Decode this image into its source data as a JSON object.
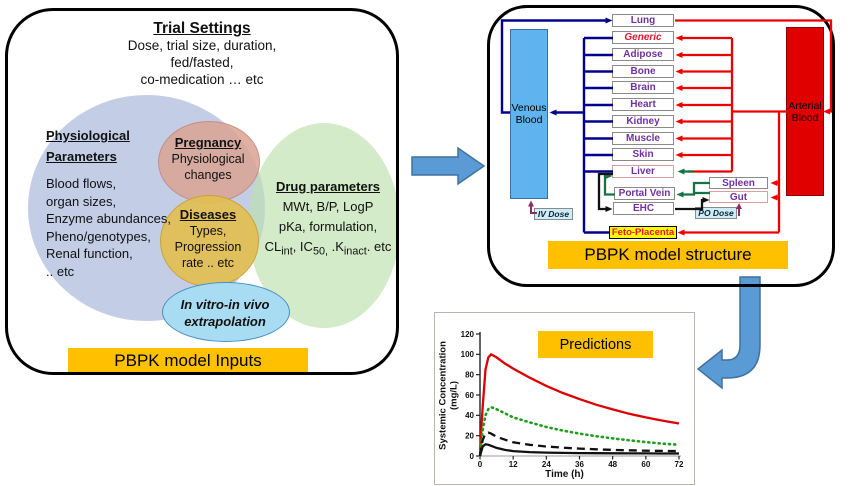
{
  "colors": {
    "accent_orange": "#FFC000",
    "venous_blue": "#5FB4F0",
    "arterial_red": "#E00000",
    "organ_text_purple": "#7030A0",
    "generic_red": "#E8112D",
    "flow_navy": "#00008C",
    "flow_red": "#EE0000",
    "flow_green": "#177245",
    "flow_black": "#111111",
    "dose_arrow_purple": "#8B2E62",
    "big_arrow_blue": "#5B9BD5",
    "big_arrow_border": "#41719C"
  },
  "inputs_panel": {
    "title": "Trial Settings",
    "subtitle_lines": [
      "Dose, trial size, duration,",
      "fed/fasted,",
      "co-medication  … etc"
    ],
    "physiological": {
      "heading1": "Physiological",
      "heading2": "Parameters",
      "items": [
        "Blood flows,",
        "organ sizes,",
        "Enzyme abundances,",
        "Pheno/genotypes,",
        "Renal function,",
        ".. etc"
      ]
    },
    "pregnancy": {
      "heading": "Pregnancy",
      "line1": "Physiological",
      "line2": "changes"
    },
    "diseases": {
      "heading": "Diseases",
      "lines": [
        "Types,",
        "Progression",
        "rate .. etc"
      ]
    },
    "drug": {
      "heading": "Drug parameters",
      "line1": "MWt, B/P, LogP",
      "line2": "pKa, formulation,",
      "line3": "CL_{int}, IC_{50,} .K_{inact}. etc"
    },
    "ivive": {
      "line1": "In vitro-in vivo",
      "line2": "extrapolation"
    },
    "footer": "PBPK model Inputs"
  },
  "structure_panel": {
    "venous": "Venous Blood",
    "arterial": "Arterial Blood",
    "organs": [
      {
        "label": "Lung",
        "variant": ""
      },
      {
        "label": "Generic",
        "variant": "generic"
      },
      {
        "label": "Adipose",
        "variant": ""
      },
      {
        "label": "Bone",
        "variant": ""
      },
      {
        "label": "Brain",
        "variant": ""
      },
      {
        "label": "Heart",
        "variant": ""
      },
      {
        "label": "Kidney",
        "variant": ""
      },
      {
        "label": "Muscle",
        "variant": ""
      },
      {
        "label": "Skin",
        "variant": ""
      },
      {
        "label": "Liver",
        "variant": "liver"
      }
    ],
    "portal_vein": "Portal Vein",
    "ehc": "EHC",
    "spleen": "Spleen",
    "gut": "Gut",
    "feto_placenta": "Feto-Placenta",
    "iv_dose": "IV Dose",
    "po_dose": "PO Dose",
    "footer": "PBPK model structure"
  },
  "chart_data": {
    "type": "line",
    "title": "Predictions",
    "xlabel": "Time (h)",
    "ylabel_line1": "Systemic Concentration",
    "ylabel_line2": "(mg/L)",
    "xlim": [
      0,
      72
    ],
    "ylim": [
      0,
      120
    ],
    "xticks": [
      0,
      12,
      24,
      36,
      48,
      60,
      72
    ],
    "yticks": [
      0,
      20,
      40,
      60,
      80,
      100,
      120
    ],
    "grid": false,
    "legend": false,
    "x": [
      0,
      0.5,
      1,
      2,
      3,
      4,
      6,
      9,
      12,
      18,
      24,
      30,
      36,
      42,
      48,
      54,
      60,
      66,
      72
    ],
    "series": [
      {
        "name": "red solid curve",
        "style": "red_solid",
        "color": "#DD0000",
        "values": [
          0,
          28,
          50,
          85,
          97,
          100,
          97,
          91,
          86,
          77,
          69,
          62,
          56,
          50.5,
          45.8,
          41.5,
          38,
          34.8,
          32
        ]
      },
      {
        "name": "green dotted curve",
        "style": "green_dotted",
        "color": "#1E9E1E",
        "values": [
          0,
          14,
          26,
          40,
          46,
          48,
          46,
          42,
          38,
          33,
          28.5,
          25,
          22,
          19.5,
          17.3,
          15.4,
          13.7,
          12.2,
          11
        ]
      },
      {
        "name": "black dashed curve",
        "style": "black_dashed",
        "color": "#111111",
        "values": [
          0,
          9,
          16,
          22,
          23,
          22,
          19,
          16,
          13.5,
          11,
          9.3,
          8.2,
          7.3,
          6.6,
          6,
          5.6,
          5.2,
          5,
          4.8
        ]
      },
      {
        "name": "black solid curve",
        "style": "black_solid",
        "color": "#111111",
        "values": [
          0,
          5,
          9.5,
          11.5,
          11,
          10,
          8,
          6,
          4.8,
          3.8,
          3.3,
          3,
          2.9,
          2.8,
          2.7,
          2.6,
          2.6,
          2.5,
          2.5
        ]
      }
    ]
  }
}
